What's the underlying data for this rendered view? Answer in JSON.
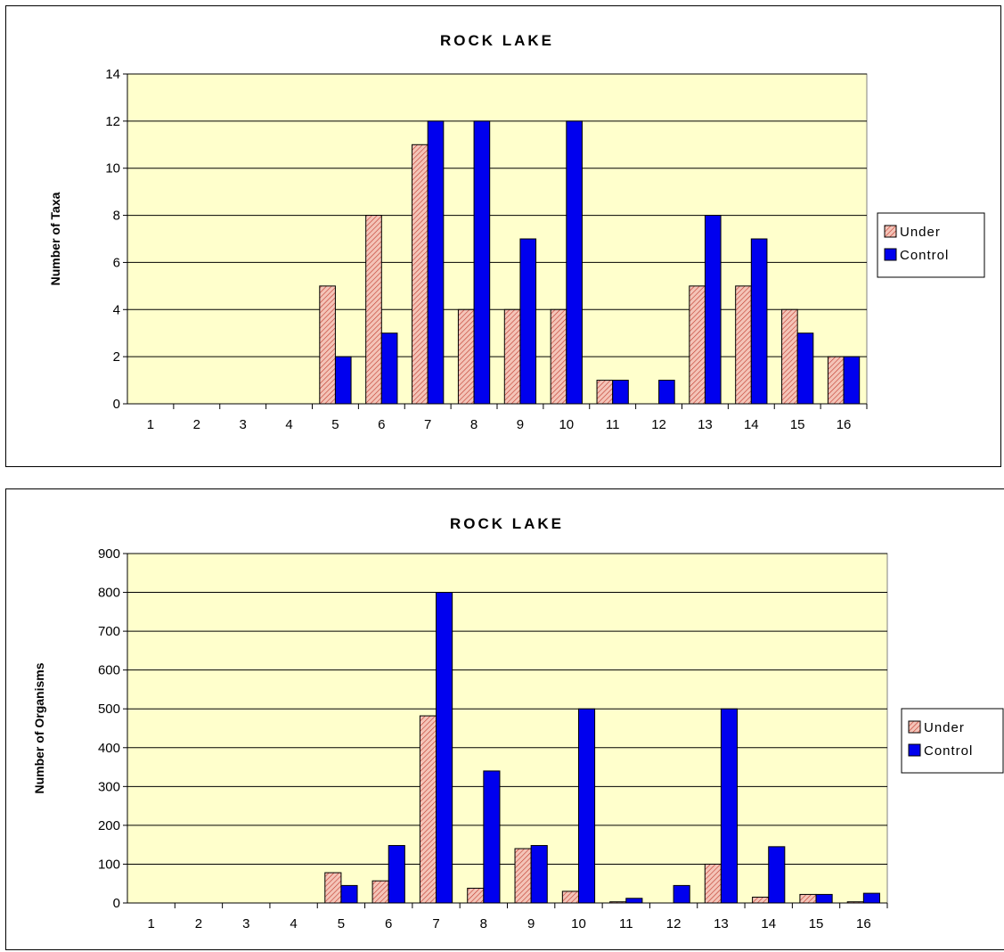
{
  "colors": {
    "plot_bg": "#ffffcc",
    "under_fill": "#f4c4b8",
    "under_hatch": "#c0392b",
    "control_fill": "#0000ee"
  },
  "chart_data": [
    {
      "type": "bar",
      "title": "ROCK LAKE",
      "xlabel": "",
      "ylabel": "Number of Taxa",
      "ylim": [
        0,
        14
      ],
      "yticks": [
        "0",
        "2",
        "4",
        "6",
        "8",
        "10",
        "12",
        "14"
      ],
      "categories": [
        "1",
        "2",
        "3",
        "4",
        "5",
        "6",
        "7",
        "8",
        "9",
        "10",
        "11",
        "12",
        "13",
        "14",
        "15",
        "16"
      ],
      "series": [
        {
          "name": "Under",
          "values": [
            0,
            0,
            0,
            0,
            5,
            8,
            11,
            4,
            4,
            4,
            1,
            0,
            5,
            5,
            4,
            2
          ]
        },
        {
          "name": "Control",
          "values": [
            0,
            0,
            0,
            0,
            2,
            3,
            12,
            12,
            7,
            12,
            1,
            1,
            8,
            7,
            3,
            2
          ]
        }
      ],
      "grid": true,
      "legend": "right"
    },
    {
      "type": "bar",
      "title": "ROCK LAKE",
      "xlabel": "",
      "ylabel": "Number of Organisms",
      "ylim": [
        0,
        900
      ],
      "yticks": [
        "0",
        "100",
        "200",
        "300",
        "400",
        "500",
        "600",
        "700",
        "800",
        "900"
      ],
      "categories": [
        "1",
        "2",
        "3",
        "4",
        "5",
        "6",
        "7",
        "8",
        "9",
        "10",
        "11",
        "12",
        "13",
        "14",
        "15",
        "16"
      ],
      "series": [
        {
          "name": "Under",
          "values": [
            0,
            0,
            0,
            0,
            78,
            57,
            482,
            38,
            140,
            30,
            3,
            0,
            100,
            15,
            22,
            3
          ]
        },
        {
          "name": "Control",
          "values": [
            0,
            0,
            0,
            0,
            45,
            148,
            800,
            340,
            148,
            500,
            12,
            45,
            500,
            145,
            22,
            25
          ]
        }
      ],
      "grid": true,
      "legend": "right"
    }
  ]
}
